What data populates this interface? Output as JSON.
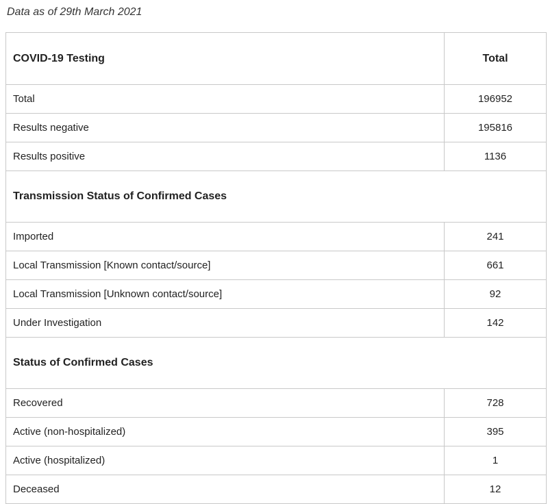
{
  "note": "Data as of 29th March 2021",
  "header": {
    "label": "COVID-19 Testing",
    "value": "Total"
  },
  "testing": [
    {
      "label": "Total",
      "value": "196952"
    },
    {
      "label": "Results negative",
      "value": "195816"
    },
    {
      "label": "Results positive",
      "value": "1136"
    }
  ],
  "transmission": {
    "title": "Transmission Status of Confirmed Cases",
    "rows": [
      {
        "label": "Imported",
        "value": "241"
      },
      {
        "label": "Local Transmission [Known contact/source]",
        "value": "661"
      },
      {
        "label": "Local Transmission [Unknown contact/source]",
        "value": "92"
      },
      {
        "label": "Under Investigation",
        "value": "142"
      }
    ]
  },
  "status": {
    "title": "Status of Confirmed Cases",
    "rows": [
      {
        "label": "Recovered",
        "value": "728"
      },
      {
        "label": "Active (non-hospitalized)",
        "value": "395"
      },
      {
        "label": "Active (hospitalized)",
        "value": "1"
      },
      {
        "label": "Deceased",
        "value": "12"
      }
    ]
  }
}
